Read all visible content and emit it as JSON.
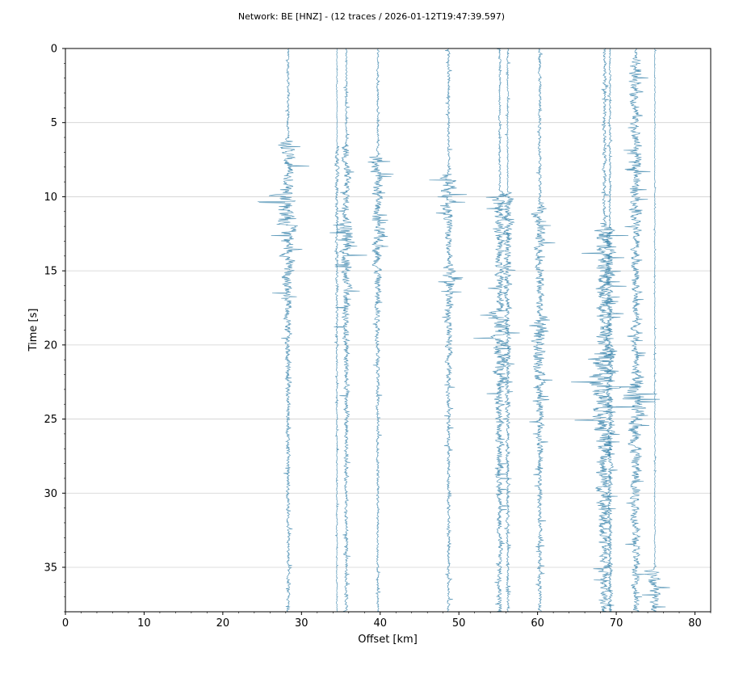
{
  "chart_data": {
    "type": "line",
    "title": "Network: BE [HNZ] - (12 traces / 2026-01-12T19:47:39.597)",
    "xlabel": "Offset [km]",
    "ylabel": "Time [s]",
    "xlim": [
      0,
      82
    ],
    "ylim": [
      38,
      0
    ],
    "x_ticks": [
      "0",
      "10",
      "20",
      "30",
      "40",
      "50",
      "60",
      "70",
      "80"
    ],
    "y_ticks": [
      "0",
      "5",
      "10",
      "15",
      "20",
      "25",
      "30",
      "35"
    ],
    "grid": "horizontal",
    "trace_color": "#2b7ba5",
    "traces": [
      {
        "offset_km": 28.3,
        "amp_km": 1.8,
        "events": [
          {
            "t": 6.0,
            "a": 1.2,
            "d": 8.0
          },
          {
            "t": 9.5,
            "a": 1.8,
            "d": 4.0
          }
        ]
      },
      {
        "offset_km": 34.5,
        "amp_km": 0.6,
        "events": [
          {
            "t": 6.5,
            "a": 1.0,
            "d": 10.0
          }
        ]
      },
      {
        "offset_km": 35.7,
        "amp_km": 1.3,
        "events": [
          {
            "t": 6.3,
            "a": 1.0,
            "d": 12.0
          },
          {
            "t": 11.5,
            "a": 1.4,
            "d": 6.0
          }
        ]
      },
      {
        "offset_km": 39.7,
        "amp_km": 1.5,
        "events": [
          {
            "t": 7.2,
            "a": 1.5,
            "d": 5.0
          },
          {
            "t": 12.0,
            "a": 0.9,
            "d": 4.0
          }
        ]
      },
      {
        "offset_km": 48.7,
        "amp_km": 1.8,
        "events": [
          {
            "t": 8.5,
            "a": 1.8,
            "d": 3.0
          },
          {
            "t": 14.5,
            "a": 0.8,
            "d": 5.0
          }
        ]
      },
      {
        "offset_km": 55.2,
        "amp_km": 1.6,
        "events": [
          {
            "t": 9.6,
            "a": 1.2,
            "d": 14.0
          },
          {
            "t": 17.5,
            "a": 1.3,
            "d": 6.0
          }
        ]
      },
      {
        "offset_km": 56.2,
        "amp_km": 1.2,
        "events": [
          {
            "t": 9.6,
            "a": 1.4,
            "d": 10.0
          }
        ]
      },
      {
        "offset_km": 60.3,
        "amp_km": 2.0,
        "events": [
          {
            "t": 10.5,
            "a": 1.0,
            "d": 6.0
          },
          {
            "t": 18.0,
            "a": 1.4,
            "d": 5.0
          }
        ]
      },
      {
        "offset_km": 68.5,
        "amp_km": 2.2,
        "events": [
          {
            "t": 11.8,
            "a": 1.2,
            "d": 18.0
          },
          {
            "t": 20.5,
            "a": 1.6,
            "d": 8.0
          }
        ]
      },
      {
        "offset_km": 69.2,
        "amp_km": 1.4,
        "events": [
          {
            "t": 12.0,
            "a": 1.2,
            "d": 16.0
          }
        ]
      },
      {
        "offset_km": 72.5,
        "amp_km": 2.0,
        "events": [
          {
            "t": 0.5,
            "a": 0.8,
            "d": 30.0
          },
          {
            "t": 22.0,
            "a": 1.2,
            "d": 6.0
          }
        ]
      },
      {
        "offset_km": 74.9,
        "amp_km": 0.6,
        "events": [
          {
            "t": 35.0,
            "a": 6.0,
            "d": 2.5
          }
        ]
      }
    ]
  }
}
